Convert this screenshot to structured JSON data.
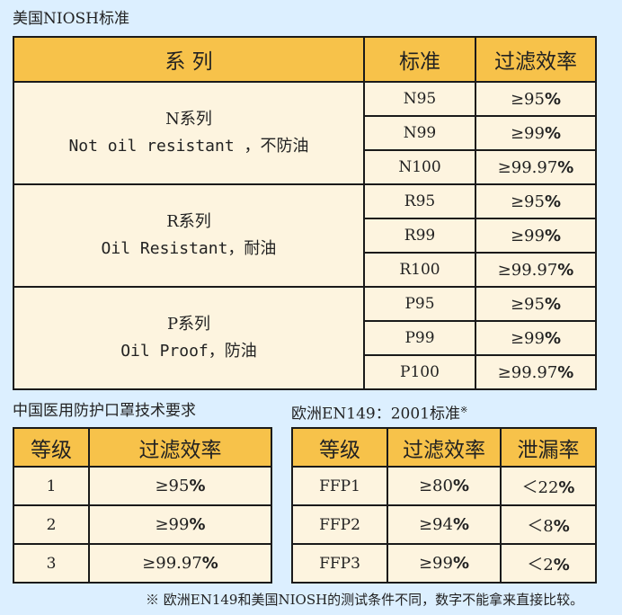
{
  "niosh": {
    "title": "美国NIOSH标准",
    "headers": [
      "系  列",
      "标准",
      "过滤效率"
    ],
    "groups": [
      {
        "name": "N系列",
        "desc": "Not oil resistant ，不防油",
        "rows": [
          {
            "std": "N95",
            "eff": "≥95",
            "pct": "%"
          },
          {
            "std": "N99",
            "eff": "≥99",
            "pct": "%"
          },
          {
            "std": "N100",
            "eff": "≥99.97",
            "pct": "%"
          }
        ]
      },
      {
        "name": "R系列",
        "desc": "Oil Resistant，耐油",
        "rows": [
          {
            "std": "R95",
            "eff": "≥95",
            "pct": "%"
          },
          {
            "std": "R99",
            "eff": "≥99",
            "pct": "%"
          },
          {
            "std": "R100",
            "eff": "≥99.97",
            "pct": "%"
          }
        ]
      },
      {
        "name": "P系列",
        "desc": "Oil Proof，防油",
        "rows": [
          {
            "std": "P95",
            "eff": "≥95",
            "pct": "%"
          },
          {
            "std": "P99",
            "eff": "≥99",
            "pct": "%"
          },
          {
            "std": "P100",
            "eff": "≥99.97",
            "pct": "%"
          }
        ]
      }
    ]
  },
  "china": {
    "title": "中国医用防护口罩技术要求",
    "headers": [
      "等级",
      "过滤效率"
    ],
    "rows": [
      {
        "grade": "1",
        "eff": "≥95",
        "pct": "%"
      },
      {
        "grade": "2",
        "eff": "≥99",
        "pct": "%"
      },
      {
        "grade": "3",
        "eff": "≥99.97",
        "pct": "%"
      }
    ]
  },
  "europe": {
    "title": "欧洲EN149：2001标准",
    "title_mark": "※",
    "headers": [
      "等级",
      "过滤效率",
      "泄漏率"
    ],
    "rows": [
      {
        "grade": "FFP1",
        "eff": "≥80",
        "pct": "%",
        "leak": "＜22",
        "leak_pct": "%"
      },
      {
        "grade": "FFP2",
        "eff": "≥94",
        "pct": "%",
        "leak": "＜8",
        "leak_pct": "%"
      },
      {
        "grade": "FFP3",
        "eff": "≥99",
        "pct": "%",
        "leak": "＜2",
        "leak_pct": "%"
      }
    ]
  },
  "footnote": "※ 欧洲EN149和美国NIOSH的测试条件不同，数字不能拿来直接比较。"
}
